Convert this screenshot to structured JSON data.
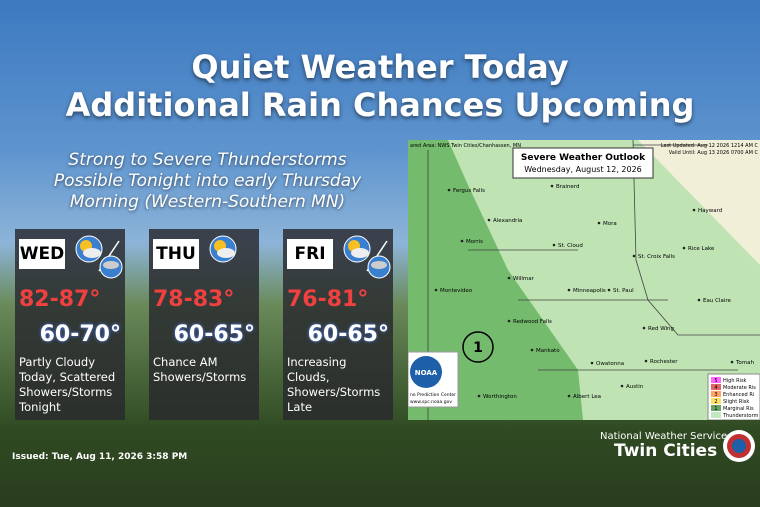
{
  "header": {
    "title_line1": "Quiet Weather Today",
    "title_line2": "Additional Rain Chances Upcoming",
    "subtitle_lines": [
      "Strong to Severe Thunderstorms",
      "Possible Tonight into early Thursday",
      "Morning (Western-Southern MN)"
    ]
  },
  "forecast": [
    {
      "day": "WED",
      "high": "82-87°",
      "low": "60-70°",
      "description": "Partly Cloudy Today, Scattered Showers/Storms Tonight"
    },
    {
      "day": "THU",
      "high": "78-83°",
      "low": "60-65°",
      "description": "Chance AM Showers/Storms"
    },
    {
      "day": "FRI",
      "high": "76-81°",
      "low": "60-65°",
      "description": "Increasing Clouds, Showers/Storms Late"
    }
  ],
  "map": {
    "title": "Severe Weather Outlook",
    "date": "Wednesday, August 12, 2026",
    "area": "ared Area: NWS Twin Cities/Chanhassen, MN",
    "last_updated": "Last Updated: Aug 12 2026 1214 AM C",
    "valid_until": "Valid Until: Aug 13 2026 0700 AM C",
    "risk_marker": "1",
    "logo": "NOAA",
    "logo_caption": "ne Prediction Center",
    "logo_url": "www.spc.noaa.gov",
    "cities": [
      "Fergus Falls",
      "Brainerd",
      "Alexandria",
      "Mora",
      "Hayward",
      "Morris",
      "St. Cloud",
      "St. Croix Falls",
      "Rice Lake",
      "Willmar",
      "Montevideo",
      "Minneapolis",
      "St. Paul",
      "Eau Claire",
      "Redwood Falls",
      "Red Wing",
      "Mankato",
      "Owatonna",
      "Rochester",
      "Tomah",
      "Austin",
      "Worthington",
      "Albert Lea"
    ],
    "legend": [
      {
        "level": "5",
        "label": "High Risk"
      },
      {
        "level": "4",
        "label": "Moderate Ris"
      },
      {
        "level": "3",
        "label": "Enhanced Ri"
      },
      {
        "level": "2",
        "label": "Slight Risk"
      },
      {
        "level": "1",
        "label": "Marginal Ris"
      },
      {
        "level": "",
        "label": "Thunderstorm"
      }
    ]
  },
  "footer": {
    "issued": "Issued: Tue, Aug 11, 2026 3:58 PM",
    "agency": "National Weather Service",
    "office": "Twin Cities"
  }
}
